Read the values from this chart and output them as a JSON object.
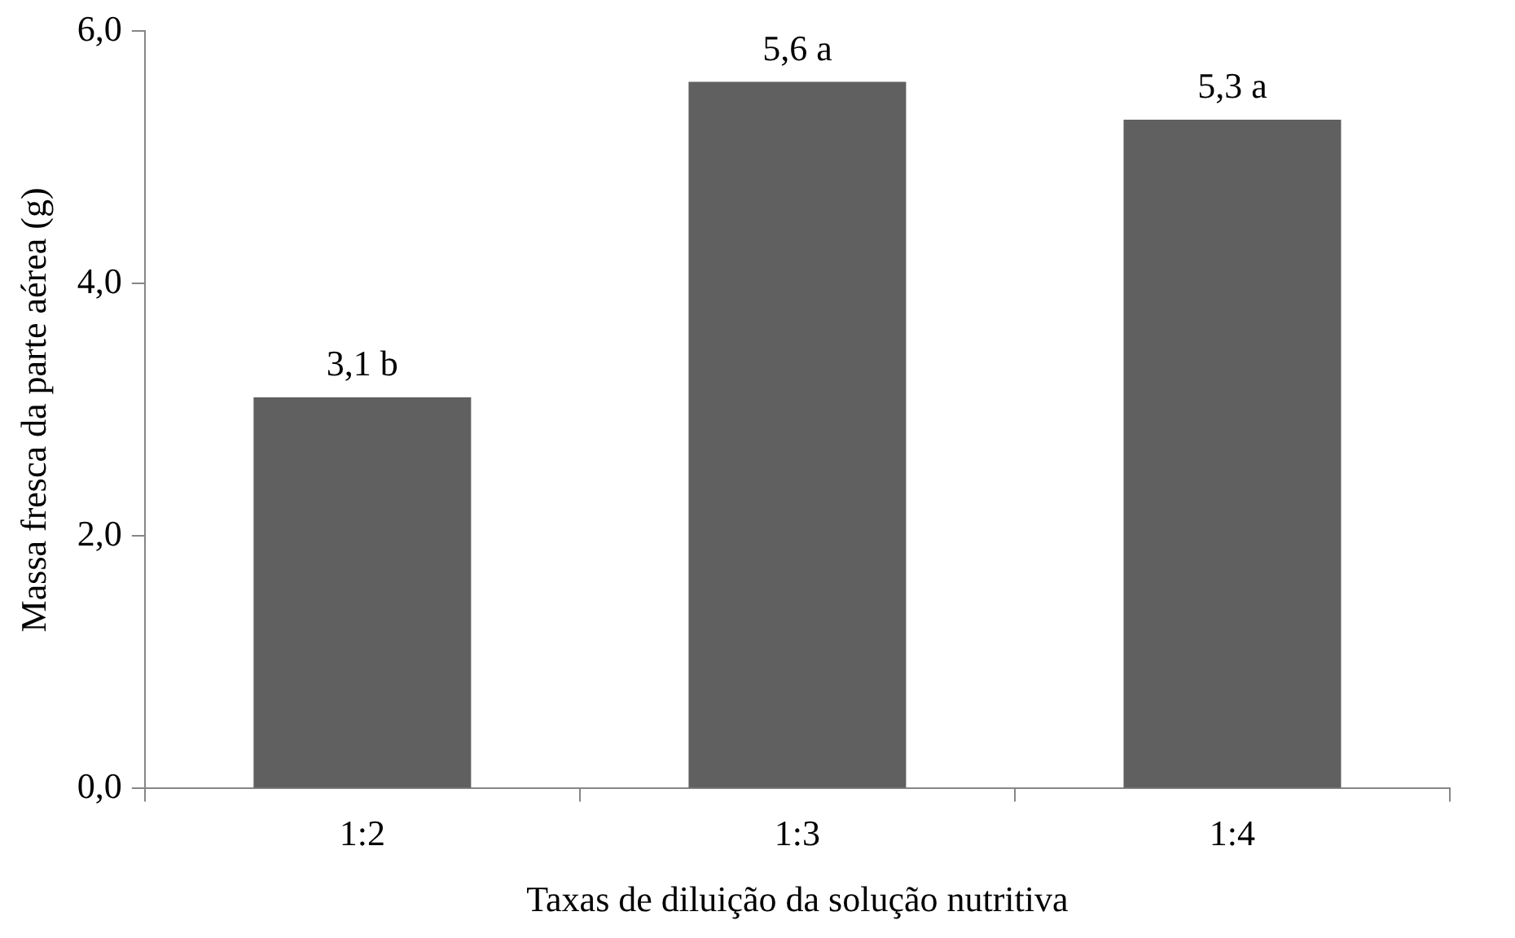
{
  "chart_data": {
    "type": "bar",
    "xlabel": "Taxas de diluição da solução nutritiva",
    "ylabel": "Massa fresca da parte aérea (g)",
    "categories": [
      "1:2",
      "1:3",
      "1:4"
    ],
    "values": [
      3.1,
      5.6,
      5.3
    ],
    "value_labels": [
      "3,1 b",
      "5,6 a",
      "5,3 a"
    ],
    "color": "#606060",
    "ylim": [
      0,
      6
    ],
    "yticks": [
      {
        "value": 0,
        "label": "0,0"
      },
      {
        "value": 2,
        "label": "2,0"
      },
      {
        "value": 4,
        "label": "4,0"
      },
      {
        "value": 6,
        "label": "6,0"
      }
    ],
    "grid": false,
    "legend": false
  }
}
